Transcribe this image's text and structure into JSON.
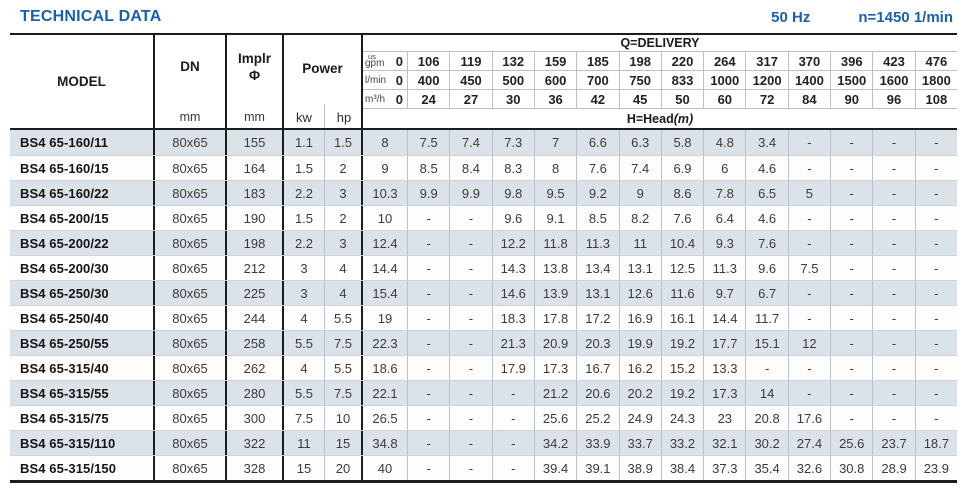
{
  "page": {
    "title": "TECHNICAL DATA",
    "frequency": "50 Hz",
    "speed": "n=1450 1/min"
  },
  "colors": {
    "accent_blue": "#1b61a8",
    "row_shade": "#dbe2e9",
    "grid_dark": "#1c1c1c",
    "grid_light": "#b9c0c7"
  },
  "table": {
    "header": {
      "model": "MODEL",
      "dn": "DN",
      "implr_line1": "Implr",
      "implr_line2": "Φ",
      "power": "Power",
      "unit_mm": "mm",
      "unit_kw": "kw",
      "unit_hp": "hp",
      "q_delivery": "Q=DELIVERY",
      "h_head": "H=Head",
      "h_head_unit": "(m)",
      "flow_rows": [
        {
          "unit_top": "us",
          "unit": "gpm",
          "values": [
            "0",
            "106",
            "119",
            "132",
            "159",
            "185",
            "198",
            "220",
            "264",
            "317",
            "370",
            "396",
            "423",
            "476"
          ]
        },
        {
          "unit": "l/min",
          "values": [
            "0",
            "400",
            "450",
            "500",
            "600",
            "700",
            "750",
            "833",
            "1000",
            "1200",
            "1400",
            "1500",
            "1600",
            "1800"
          ]
        },
        {
          "unit": "m³/h",
          "values": [
            "0",
            "24",
            "27",
            "30",
            "36",
            "42",
            "45",
            "50",
            "60",
            "72",
            "84",
            "90",
            "96",
            "108"
          ]
        }
      ]
    },
    "rows": [
      {
        "model": "BS4 65-160/11",
        "dn": "80x65",
        "implr": "155",
        "kw": "1.1",
        "hp": "1.5",
        "head": [
          "8",
          "7.5",
          "7.4",
          "7.3",
          "7",
          "6.6",
          "6.3",
          "5.8",
          "4.8",
          "3.4",
          "-",
          "-",
          "-",
          "-"
        ]
      },
      {
        "model": "BS4 65-160/15",
        "dn": "80x65",
        "implr": "164",
        "kw": "1.5",
        "hp": "2",
        "head": [
          "9",
          "8.5",
          "8.4",
          "8.3",
          "8",
          "7.6",
          "7.4",
          "6.9",
          "6",
          "4.6",
          "-",
          "-",
          "-",
          "-"
        ]
      },
      {
        "model": "BS4 65-160/22",
        "dn": "80x65",
        "implr": "183",
        "kw": "2.2",
        "hp": "3",
        "head": [
          "10.3",
          "9.9",
          "9.9",
          "9.8",
          "9.5",
          "9.2",
          "9",
          "8.6",
          "7.8",
          "6.5",
          "5",
          "-",
          "-",
          "-"
        ]
      },
      {
        "model": "BS4 65-200/15",
        "dn": "80x65",
        "implr": "190",
        "kw": "1.5",
        "hp": "2",
        "head": [
          "10",
          "-",
          "-",
          "9.6",
          "9.1",
          "8.5",
          "8.2",
          "7.6",
          "6.4",
          "4.6",
          "-",
          "-",
          "-",
          "-"
        ]
      },
      {
        "model": "BS4 65-200/22",
        "dn": "80x65",
        "implr": "198",
        "kw": "2.2",
        "hp": "3",
        "head": [
          "12.4",
          "-",
          "-",
          "12.2",
          "11.8",
          "11.3",
          "11",
          "10.4",
          "9.3",
          "7.6",
          "-",
          "-",
          "-",
          "-"
        ]
      },
      {
        "model": "BS4 65-200/30",
        "dn": "80x65",
        "implr": "212",
        "kw": "3",
        "hp": "4",
        "head": [
          "14.4",
          "-",
          "-",
          "14.3",
          "13.8",
          "13.4",
          "13.1",
          "12.5",
          "11.3",
          "9.6",
          "7.5",
          "-",
          "-",
          "-"
        ]
      },
      {
        "model": "BS4 65-250/30",
        "dn": "80x65",
        "implr": "225",
        "kw": "3",
        "hp": "4",
        "head": [
          "15.4",
          "-",
          "-",
          "14.6",
          "13.9",
          "13.1",
          "12.6",
          "11.6",
          "9.7",
          "6.7",
          "-",
          "-",
          "-",
          "-"
        ]
      },
      {
        "model": "BS4 65-250/40",
        "dn": "80x65",
        "implr": "244",
        "kw": "4",
        "hp": "5.5",
        "head": [
          "19",
          "-",
          "-",
          "18.3",
          "17.8",
          "17.2",
          "16.9",
          "16.1",
          "14.4",
          "11.7",
          "-",
          "-",
          "-",
          "-"
        ]
      },
      {
        "model": "BS4 65-250/55",
        "dn": "80x65",
        "implr": "258",
        "kw": "5.5",
        "hp": "7.5",
        "head": [
          "22.3",
          "-",
          "-",
          "21.3",
          "20.9",
          "20.3",
          "19.9",
          "19.2",
          "17.7",
          "15.1",
          "12",
          "-",
          "-",
          "-"
        ]
      },
      {
        "model": "BS4 65-315/40",
        "dn": "80x65",
        "implr": "262",
        "kw": "4",
        "hp": "5.5",
        "head": [
          "18.6",
          "-",
          "-",
          "17.9",
          "17.3",
          "16.7",
          "16.2",
          "15.2",
          "13.3",
          "-",
          "-",
          "-",
          "-",
          "-"
        ]
      },
      {
        "model": "BS4 65-315/55",
        "dn": "80x65",
        "implr": "280",
        "kw": "5.5",
        "hp": "7.5",
        "head": [
          "22.1",
          "-",
          "-",
          "-",
          "21.2",
          "20.6",
          "20.2",
          "19.2",
          "17.3",
          "14",
          "-",
          "-",
          "-",
          "-"
        ]
      },
      {
        "model": "BS4 65-315/75",
        "dn": "80x65",
        "implr": "300",
        "kw": "7.5",
        "hp": "10",
        "head": [
          "26.5",
          "-",
          "-",
          "-",
          "25.6",
          "25.2",
          "24.9",
          "24.3",
          "23",
          "20.8",
          "17.6",
          "-",
          "-",
          "-"
        ]
      },
      {
        "model": "BS4 65-315/110",
        "dn": "80x65",
        "implr": "322",
        "kw": "11",
        "hp": "15",
        "head": [
          "34.8",
          "-",
          "-",
          "-",
          "34.2",
          "33.9",
          "33.7",
          "33.2",
          "32.1",
          "30.2",
          "27.4",
          "25.6",
          "23.7",
          "18.7"
        ]
      },
      {
        "model": "BS4 65-315/150",
        "dn": "80x65",
        "implr": "328",
        "kw": "15",
        "hp": "20",
        "head": [
          "40",
          "-",
          "-",
          "-",
          "39.4",
          "39.1",
          "38.9",
          "38.4",
          "37.3",
          "35.4",
          "32.6",
          "30.8",
          "28.9",
          "23.9"
        ]
      }
    ]
  }
}
